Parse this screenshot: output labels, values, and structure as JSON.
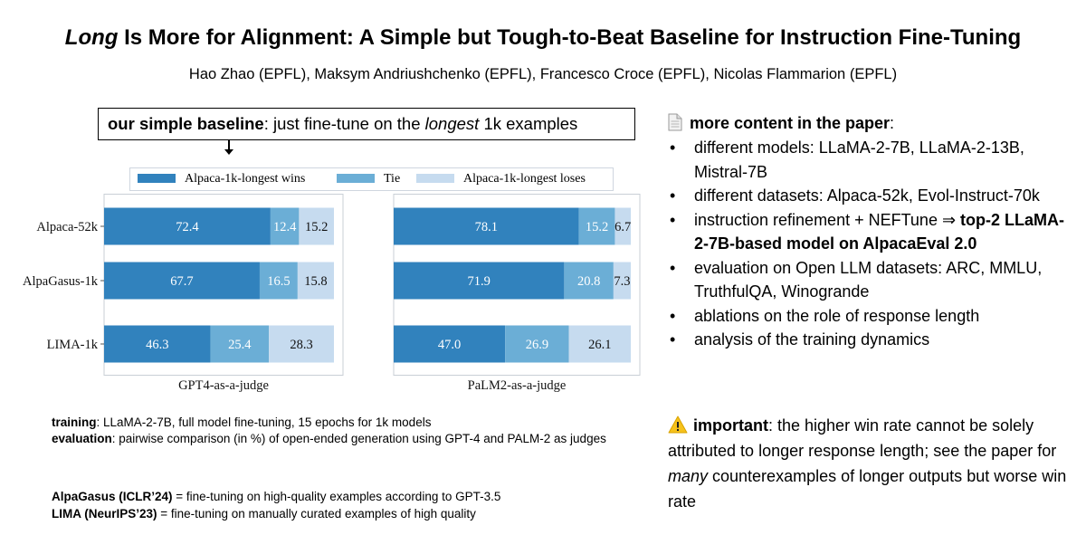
{
  "title": {
    "italic": "Long",
    "rest": " Is More for Alignment: A Simple but Tough-to-Beat Baseline for Instruction Fine-Tuning"
  },
  "authors": "Hao Zhao (EPFL), Maksym Andriushchenko (EPFL), Francesco Croce (EPFL), Nicolas Flammarion (EPFL)",
  "callout": {
    "bold": "our simple baseline",
    "pre": ": just fine-tune on the ",
    "italic": "longest",
    "post": " 1k examples"
  },
  "legend": {
    "wins": "Alpaca-1k-longest wins",
    "tie": "Tie",
    "loses": "Alpaca-1k-longest loses"
  },
  "colors": {
    "wins": "#3182bd",
    "tie": "#6baed6",
    "loses": "#c6dbef"
  },
  "chart_data": [
    {
      "type": "bar",
      "orientation": "horizontal-stacked",
      "xlabel": "GPT4-as-a-judge",
      "categories": [
        "Alpaca-52k",
        "AlpaGasus-1k",
        "LIMA-1k"
      ],
      "series": [
        {
          "name": "Alpaca-1k-longest wins",
          "values": [
            72.4,
            67.7,
            46.3
          ]
        },
        {
          "name": "Tie",
          "values": [
            12.4,
            16.5,
            25.4
          ]
        },
        {
          "name": "Alpaca-1k-longest loses",
          "values": [
            15.2,
            15.8,
            28.3
          ]
        }
      ],
      "xlim": [
        0,
        100
      ]
    },
    {
      "type": "bar",
      "orientation": "horizontal-stacked",
      "xlabel": "PaLM2-as-a-judge",
      "categories": [
        "Alpaca-52k",
        "AlpaGasus-1k",
        "LIMA-1k"
      ],
      "series": [
        {
          "name": "Alpaca-1k-longest wins",
          "values": [
            78.1,
            71.9,
            47.0
          ]
        },
        {
          "name": "Tie",
          "values": [
            15.2,
            20.8,
            26.9
          ]
        },
        {
          "name": "Alpaca-1k-longest loses",
          "values": [
            6.7,
            7.3,
            26.1
          ]
        }
      ],
      "xlim": [
        0,
        100
      ]
    }
  ],
  "notes": {
    "training_label": "training",
    "training_text": ": LLaMA-2-7B, full model fine-tuning, 15 epochs for 1k models",
    "evaluation_label": "evaluation",
    "evaluation_text": ": pairwise comparison (in %) of open-ended generation using GPT-4 and PALM-2 as judges",
    "alpagasus_label": "AlpaGasus (ICLR’24)",
    "alpagasus_text": " = fine-tuning on high-quality examples according to GPT-3.5",
    "lima_label": "LIMA (NeurIPS’23)",
    "lima_text": " = fine-tuning on manually curated examples of high quality"
  },
  "more_content": {
    "heading": "more content in the paper",
    "heading_suffix": ":",
    "bullets": [
      "different models: LLaMA-2-7B, LLaMA-2-13B, Mistral-7B",
      "different datasets: Alpaca-52k, Evol-Instruct-70k",
      {
        "text": "instruction refinement + NEFTune ⇒ ",
        "bold": "top-2 LLaMA-2-7B-based model on AlpacaEval 2.0"
      },
      "evaluation on Open LLM datasets: ARC, MMLU, TruthfulQA, Winogrande",
      "ablations on the role of response length",
      "analysis of the training dynamics"
    ]
  },
  "important": {
    "label": "important",
    "pre": ": the higher win rate cannot be solely attributed to longer response length; see the paper for ",
    "italic": "many",
    "post": " counterexamples of longer outputs but worse win rate"
  }
}
